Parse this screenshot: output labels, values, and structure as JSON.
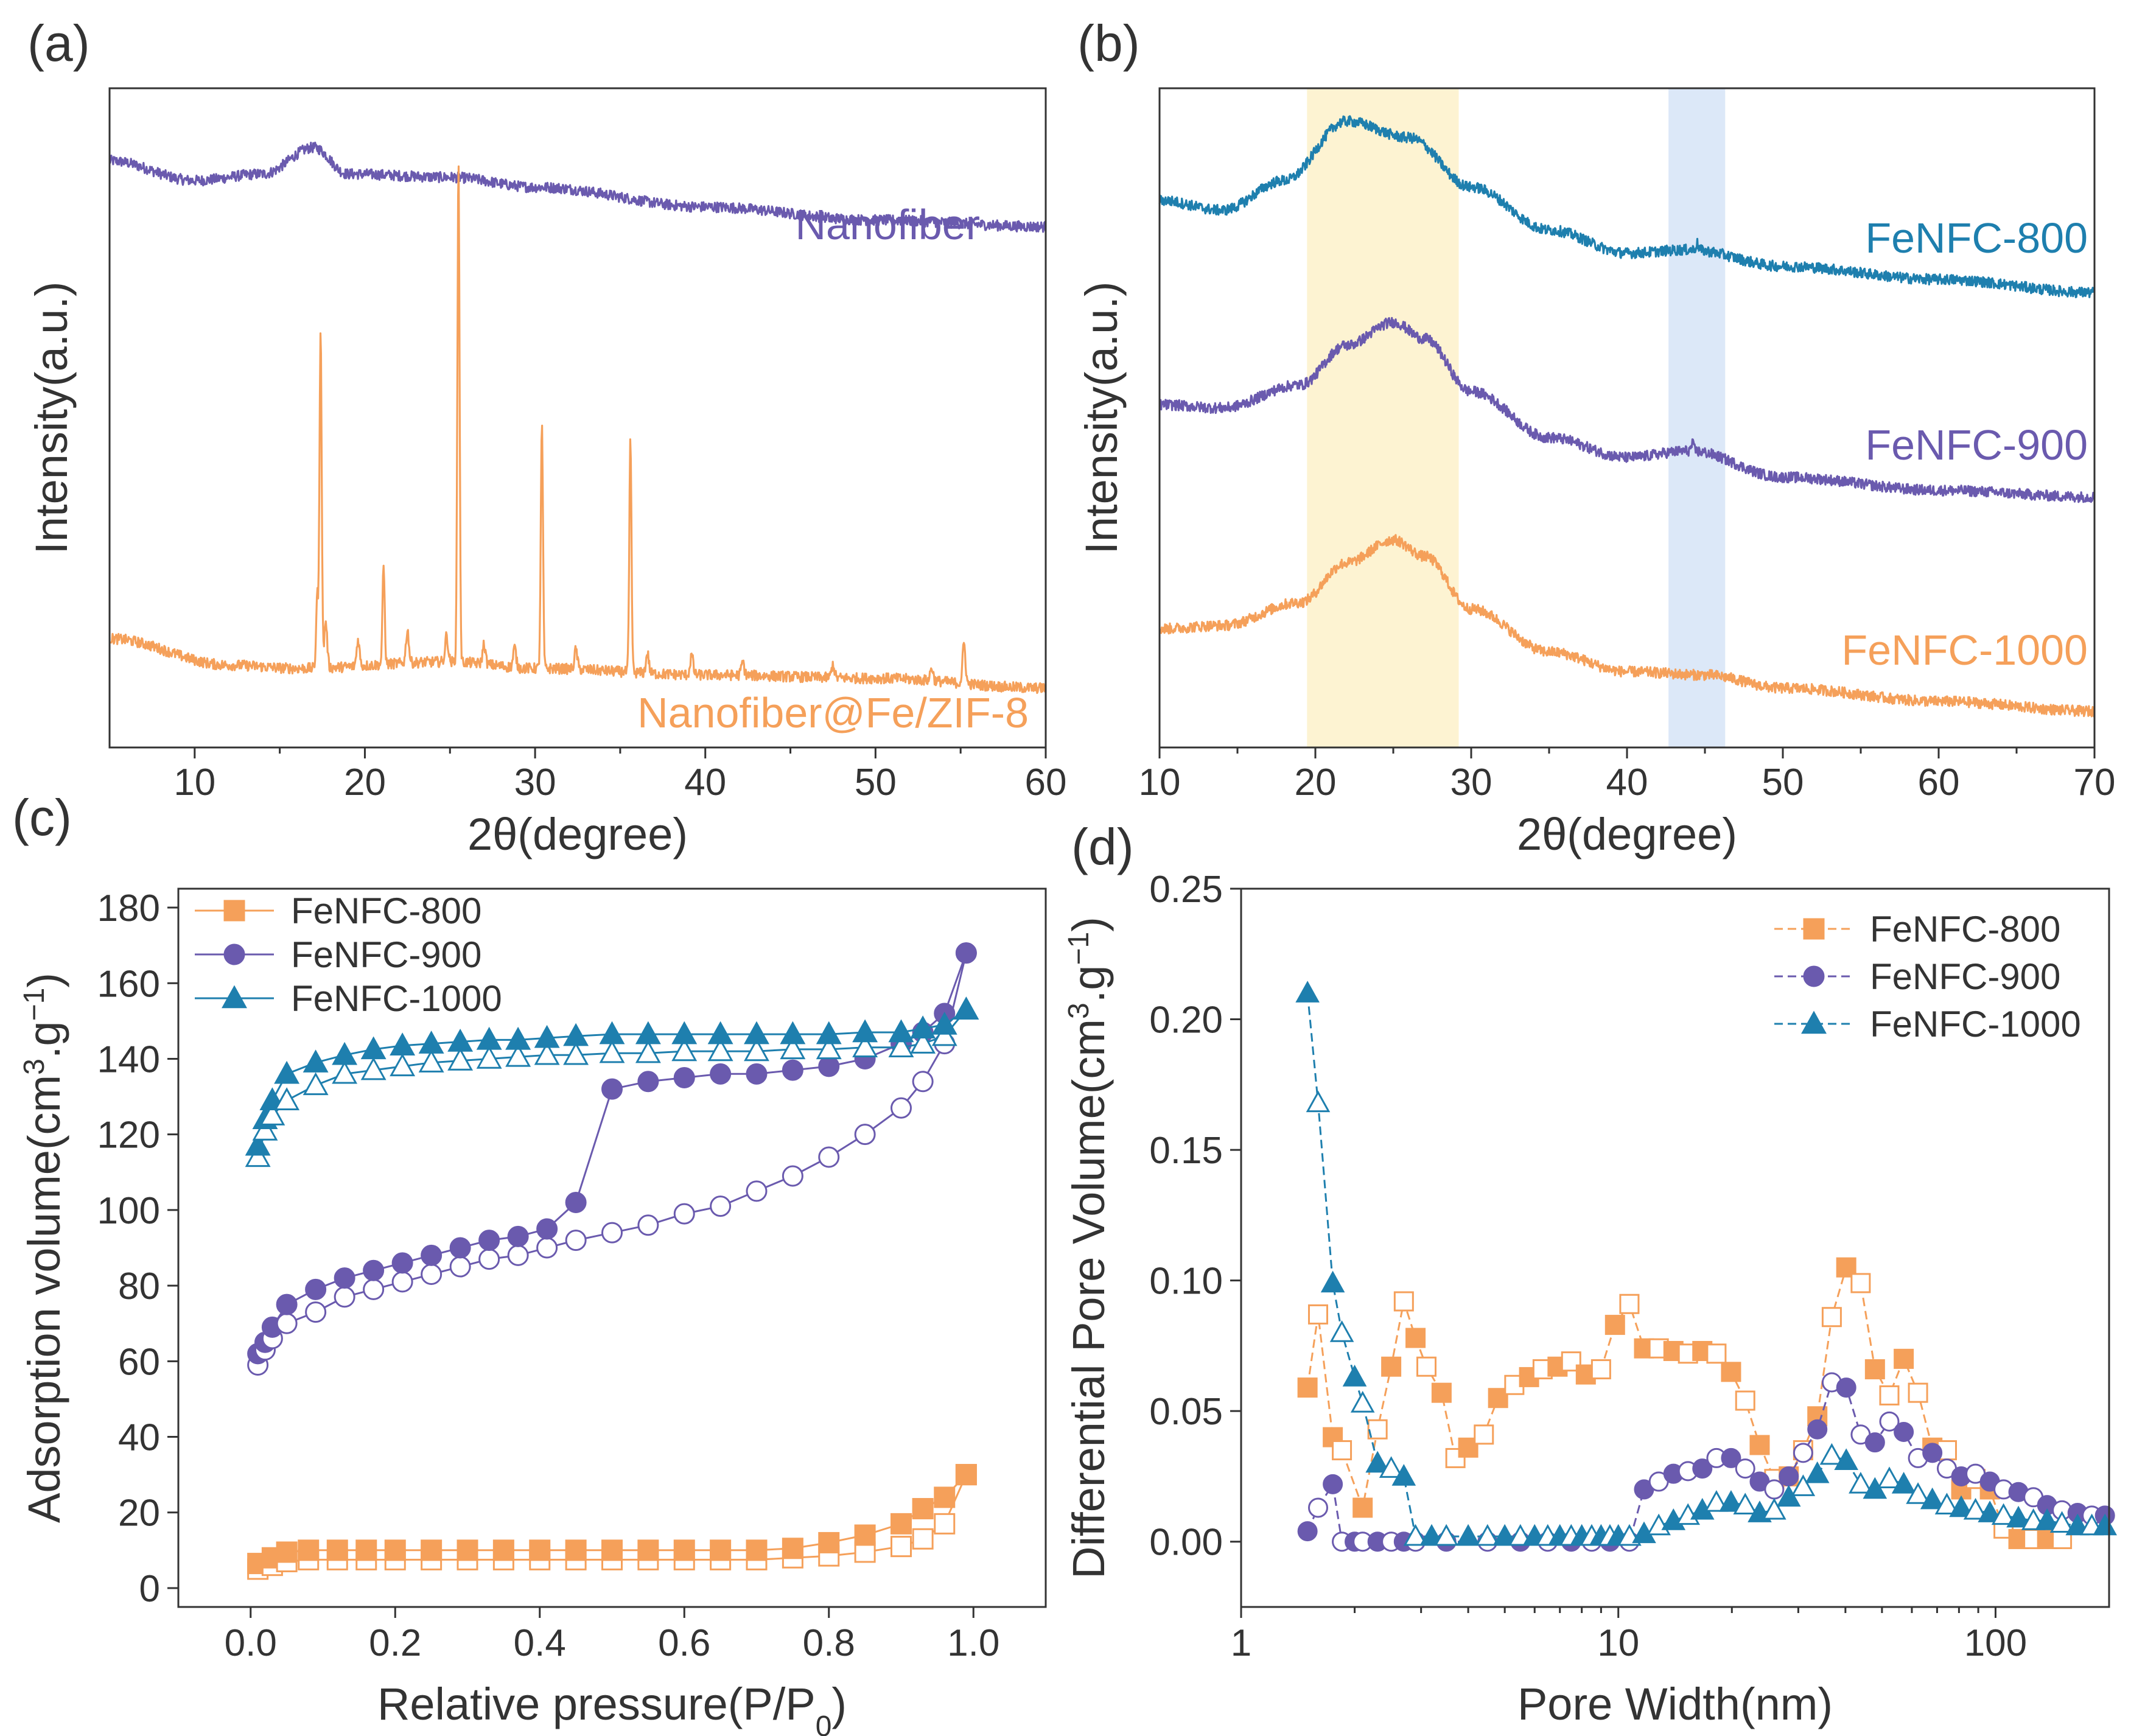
{
  "colors": {
    "orange": "#F5A05A",
    "purple": "#6A5AAE",
    "blue": "#1E7FAE",
    "axis": "#333333",
    "band_yellow": "#FDF3D2",
    "band_blue": "#DCE8F8"
  },
  "chart_data": [
    {
      "panel": "(a)",
      "type": "line",
      "xlabel": "2θ(degree)",
      "ylabel": "Intensity(a.u.)",
      "xlim": [
        5,
        60
      ],
      "xticks": [
        10,
        20,
        30,
        40,
        50,
        60
      ],
      "ylim": [
        0,
        100
      ],
      "yticks_shown": false,
      "series": [
        {
          "name": "Nanofiber",
          "color": "#6A5AAE",
          "baseline": [
            [
              5,
              89
            ],
            [
              10,
              86
            ],
            [
              14,
              87
            ],
            [
              17,
              91
            ],
            [
              19,
              87
            ],
            [
              25,
              86.5
            ],
            [
              30,
              85
            ],
            [
              40,
              82
            ],
            [
              50,
              80
            ],
            [
              60,
              79
            ]
          ],
          "peaks": []
        },
        {
          "name": "Nanofiber@Fe/ZIF-8",
          "color": "#F5A05A",
          "baseline": [
            [
              5,
              16.5
            ],
            [
              12,
              12.5
            ],
            [
              16,
              12
            ],
            [
              25,
              13
            ],
            [
              30,
              12
            ],
            [
              40,
              11
            ],
            [
              50,
              10.5
            ],
            [
              60,
              9
            ]
          ],
          "peaks": [
            [
              17.2,
              11
            ],
            [
              17.4,
              52
            ],
            [
              17.7,
              7
            ],
            [
              19.6,
              4
            ],
            [
              21.1,
              15
            ],
            [
              22.5,
              5
            ],
            [
              24.8,
              4
            ],
            [
              25.5,
              76
            ],
            [
              27.0,
              3
            ],
            [
              28.8,
              3
            ],
            [
              30.4,
              37
            ],
            [
              32.4,
              3
            ],
            [
              35.6,
              35
            ],
            [
              36.6,
              3
            ],
            [
              39.2,
              3
            ],
            [
              42.2,
              2
            ],
            [
              47.5,
              2
            ],
            [
              53.3,
              2
            ],
            [
              55.2,
              6
            ]
          ]
        }
      ]
    },
    {
      "panel": "(b)",
      "type": "line",
      "xlabel": "2θ(degree)",
      "ylabel": "Intensity(a.u.)",
      "xlim": [
        10,
        70
      ],
      "xticks": [
        10,
        20,
        30,
        40,
        50,
        60,
        70
      ],
      "ylim": [
        0,
        100
      ],
      "yticks_shown": false,
      "shaded_bands": [
        {
          "x": [
            19.5,
            29.2
          ],
          "color": "#FDF3D2"
        },
        {
          "x": [
            42.7,
            46.3
          ],
          "color": "#DCE8F8"
        }
      ],
      "series": [
        {
          "name": "FeNFC-800",
          "color": "#1E7FAE",
          "baseline": [
            [
              10,
              83
            ],
            [
              14,
              81.5
            ],
            [
              18,
              86
            ],
            [
              22,
              95
            ],
            [
              26,
              92.5
            ],
            [
              30,
              85
            ],
            [
              35,
              78.5
            ],
            [
              40,
              75
            ],
            [
              44,
              75.5
            ],
            [
              50,
              73
            ],
            [
              60,
              71
            ],
            [
              70,
              69
            ]
          ],
          "peaks": [
            [
              44.5,
              1
            ]
          ]
        },
        {
          "name": "FeNFC-900",
          "color": "#6A5AAE",
          "baseline": [
            [
              10,
              52
            ],
            [
              14,
              51.5
            ],
            [
              19,
              55
            ],
            [
              22,
              61
            ],
            [
              25,
              64.5
            ],
            [
              27,
              62
            ],
            [
              30,
              54
            ],
            [
              35,
              47
            ],
            [
              40,
              44
            ],
            [
              44,
              45
            ],
            [
              50,
              41
            ],
            [
              60,
              39
            ],
            [
              70,
              38
            ]
          ],
          "peaks": [
            [
              44.2,
              1
            ]
          ]
        },
        {
          "name": "FeNFC-1000",
          "color": "#F5A05A",
          "baseline": [
            [
              10,
              18
            ],
            [
              14,
              18.5
            ],
            [
              19,
              22
            ],
            [
              22,
              28
            ],
            [
              25,
              31.5
            ],
            [
              27,
              29
            ],
            [
              30,
              21
            ],
            [
              35,
              14.5
            ],
            [
              40,
              11.5
            ],
            [
              45,
              11
            ],
            [
              50,
              9
            ],
            [
              60,
              7
            ],
            [
              70,
              5.5
            ]
          ],
          "peaks": []
        }
      ]
    },
    {
      "panel": "(c)",
      "type": "scatter",
      "xlabel": "Relative pressure(P/P",
      "xlabel_sub": "0",
      "xlabel_close": ")",
      "ylabel": "Adsorption volume(cm",
      "ylabel_sup": "3",
      "ylabel_mid": ".g",
      "ylabel_sup2": "−1",
      "ylabel_close": ")",
      "xlim": [
        -0.1,
        1.1
      ],
      "xticks": [
        0.0,
        0.2,
        0.4,
        0.6,
        0.8,
        1.0
      ],
      "xtick_labels": [
        "0.0",
        "0.2",
        "0.4",
        "0.6",
        "0.8",
        "1.0"
      ],
      "ylim": [
        -5,
        185
      ],
      "yticks": [
        0,
        20,
        40,
        60,
        80,
        100,
        120,
        140,
        160,
        180
      ],
      "legend": "top-left",
      "series": [
        {
          "name": "FeNFC-800",
          "marker": "square",
          "color": "#F5A05A",
          "x": [
            0.01,
            0.03,
            0.05,
            0.08,
            0.12,
            0.16,
            0.2,
            0.25,
            0.3,
            0.35,
            0.4,
            0.45,
            0.5,
            0.55,
            0.6,
            0.65,
            0.7,
            0.75,
            0.8,
            0.85,
            0.9,
            0.93,
            0.96,
            0.99
          ],
          "adsorption": [
            5,
            6,
            7,
            7.5,
            7.5,
            7.5,
            7.5,
            7.5,
            7.5,
            7.5,
            7.5,
            7.5,
            7.5,
            7.5,
            7.5,
            7.5,
            7.5,
            8,
            8.5,
            9.5,
            11,
            13,
            17,
            30
          ],
          "desorption": [
            6.5,
            8,
            9.5,
            10,
            10,
            10,
            10,
            10,
            10,
            10,
            10,
            10,
            10,
            10,
            10,
            10,
            10,
            10.5,
            12,
            14,
            17,
            21,
            24,
            30
          ]
        },
        {
          "name": "FeNFC-900",
          "marker": "circle",
          "color": "#6A5AAE",
          "x": [
            0.01,
            0.02,
            0.03,
            0.05,
            0.09,
            0.13,
            0.17,
            0.21,
            0.25,
            0.29,
            0.33,
            0.37,
            0.41,
            0.45,
            0.5,
            0.55,
            0.6,
            0.65,
            0.7,
            0.75,
            0.8,
            0.85,
            0.9,
            0.93,
            0.96,
            0.99
          ],
          "adsorption": [
            59,
            63,
            66,
            70,
            73,
            77,
            79,
            81,
            83,
            85,
            87,
            88,
            90,
            92,
            94,
            96,
            99,
            101,
            105,
            109,
            114,
            120,
            127,
            134,
            144,
            168
          ],
          "desorption": [
            62,
            65,
            69,
            75,
            79,
            82,
            84,
            86,
            88,
            90,
            92,
            93,
            95,
            102,
            132,
            134,
            135,
            136,
            136,
            137,
            138,
            140,
            144,
            147,
            152,
            168
          ]
        },
        {
          "name": "FeNFC-1000",
          "marker": "triangle",
          "color": "#1E7FAE",
          "x": [
            0.01,
            0.02,
            0.03,
            0.05,
            0.09,
            0.13,
            0.17,
            0.21,
            0.25,
            0.29,
            0.33,
            0.37,
            0.41,
            0.45,
            0.5,
            0.55,
            0.6,
            0.65,
            0.7,
            0.75,
            0.8,
            0.85,
            0.9,
            0.93,
            0.96,
            0.99
          ],
          "adsorption": [
            114,
            121,
            125,
            129,
            133,
            136,
            137,
            138,
            139,
            139.5,
            140,
            140.5,
            141,
            141,
            141.5,
            141.5,
            142,
            142,
            142,
            142.5,
            142.5,
            143,
            143,
            144,
            146,
            153
          ],
          "desorption": [
            117,
            124,
            129,
            136,
            139,
            141,
            142.5,
            143.5,
            144,
            144.5,
            145,
            145,
            145.5,
            146,
            146.5,
            146.5,
            146.5,
            146.5,
            146.5,
            146.5,
            146.5,
            147,
            147,
            148,
            149,
            153
          ]
        }
      ]
    },
    {
      "panel": "(d)",
      "type": "line",
      "xscale": "log",
      "xlabel": "Pore Width(nm)",
      "ylabel": "Differential Pore Volume(cm",
      "ylabel_sup": "3",
      "ylabel_mid": ".g",
      "ylabel_sup2": "−1",
      "ylabel_close": ")",
      "xlim": [
        1,
        200
      ],
      "xticks": [
        1,
        10,
        100
      ],
      "xtick_labels": [
        "1",
        "10",
        "100"
      ],
      "ylim": [
        -0.025,
        0.25
      ],
      "yticks": [
        0.0,
        0.05,
        0.1,
        0.15,
        0.2,
        0.25
      ],
      "ytick_labels": [
        "0.00",
        "0.05",
        "0.10",
        "0.15",
        "0.20",
        "0.25"
      ],
      "legend": "top-right",
      "series": [
        {
          "name": "FeNFC-800",
          "marker": "square",
          "color": "#F5A05A",
          "x": [
            1.5,
            1.6,
            1.75,
            1.85,
            2.1,
            2.3,
            2.5,
            2.7,
            2.9,
            3.1,
            3.4,
            3.7,
            4.0,
            4.4,
            4.8,
            5.3,
            5.8,
            6.3,
            6.9,
            7.5,
            8.2,
            9.0,
            9.8,
            10.7,
            11.7,
            12.8,
            14.0,
            15.3,
            16.7,
            18.2,
            19.9,
            21.7,
            23.7,
            25.9,
            28.3,
            30.9,
            33.7,
            36.8,
            40.2,
            43.9,
            47.9,
            52.3,
            57.1,
            62.3,
            68.0,
            74.3,
            81.1,
            88.5,
            96.6,
            105,
            115,
            126,
            137,
            150
          ],
          "values": [
            0.059,
            0.087,
            0.04,
            0.035,
            0.013,
            0.043,
            0.067,
            0.092,
            0.078,
            0.067,
            0.057,
            0.032,
            0.036,
            0.041,
            0.055,
            0.06,
            0.063,
            0.066,
            0.067,
            0.069,
            0.064,
            0.066,
            0.083,
            0.091,
            0.074,
            0.074,
            0.073,
            0.072,
            0.073,
            0.072,
            0.065,
            0.054,
            0.037,
            0.024,
            0.025,
            0.035,
            0.048,
            0.086,
            0.105,
            0.099,
            0.066,
            0.056,
            0.07,
            0.057,
            0.036,
            0.035,
            0.02,
            0.024,
            0.02,
            0.005,
            0.001,
            0.001,
            0.001,
            0.001
          ]
        },
        {
          "name": "FeNFC-900",
          "marker": "circle",
          "color": "#6A5AAE",
          "x": [
            1.5,
            1.6,
            1.75,
            1.85,
            2.0,
            2.1,
            2.3,
            2.5,
            2.7,
            2.9,
            3.5,
            4.5,
            5.5,
            6.5,
            7.5,
            8.5,
            9.5,
            10.7,
            11.7,
            12.8,
            14.0,
            15.3,
            16.7,
            18.2,
            19.9,
            21.7,
            23.7,
            25.9,
            28.3,
            30.9,
            33.7,
            36.8,
            40.2,
            43.9,
            47.9,
            52.3,
            57.1,
            62.3,
            68.0,
            74.3,
            81.1,
            88.5,
            96.6,
            105,
            115,
            126,
            137,
            150,
            165,
            180,
            195
          ],
          "values": [
            0.004,
            0.013,
            0.022,
            0.0,
            0.0,
            0.0,
            0.0,
            0.0,
            0.0,
            0.0,
            0.0,
            0.0,
            0.0,
            0.0,
            0.0,
            0.0,
            0.0,
            0.0,
            0.02,
            0.023,
            0.026,
            0.027,
            0.028,
            0.032,
            0.032,
            0.028,
            0.023,
            0.02,
            0.025,
            0.034,
            0.043,
            0.061,
            0.059,
            0.041,
            0.038,
            0.046,
            0.042,
            0.032,
            0.034,
            0.028,
            0.025,
            0.026,
            0.023,
            0.02,
            0.019,
            0.017,
            0.014,
            0.012,
            0.011,
            0.01,
            0.01
          ]
        },
        {
          "name": "FeNFC-1000",
          "marker": "triangle",
          "color": "#1E7FAE",
          "x": [
            1.5,
            1.6,
            1.75,
            1.85,
            2.0,
            2.1,
            2.3,
            2.5,
            2.7,
            2.9,
            3.2,
            3.5,
            4.0,
            4.5,
            5.0,
            5.5,
            6.0,
            6.5,
            7.0,
            7.5,
            8.0,
            8.5,
            9.0,
            9.5,
            10.0,
            10.7,
            11.7,
            12.8,
            14.0,
            15.3,
            16.7,
            18.2,
            19.9,
            21.7,
            23.7,
            25.9,
            28.3,
            30.9,
            33.7,
            36.8,
            40.2,
            43.9,
            47.9,
            52.3,
            57.1,
            62.3,
            68.0,
            74.3,
            81.1,
            88.5,
            96.6,
            105,
            115,
            126,
            137,
            150,
            165,
            180,
            195
          ],
          "values": [
            0.21,
            0.168,
            0.099,
            0.08,
            0.063,
            0.053,
            0.03,
            0.028,
            0.025,
            0.002,
            0.002,
            0.002,
            0.002,
            0.002,
            0.002,
            0.002,
            0.002,
            0.002,
            0.002,
            0.002,
            0.002,
            0.002,
            0.002,
            0.002,
            0.002,
            0.002,
            0.003,
            0.006,
            0.008,
            0.01,
            0.012,
            0.015,
            0.015,
            0.014,
            0.011,
            0.012,
            0.017,
            0.021,
            0.026,
            0.033,
            0.031,
            0.022,
            0.02,
            0.024,
            0.022,
            0.018,
            0.016,
            0.014,
            0.013,
            0.012,
            0.011,
            0.01,
            0.009,
            0.008,
            0.008,
            0.007,
            0.006,
            0.006,
            0.006
          ]
        }
      ]
    }
  ]
}
